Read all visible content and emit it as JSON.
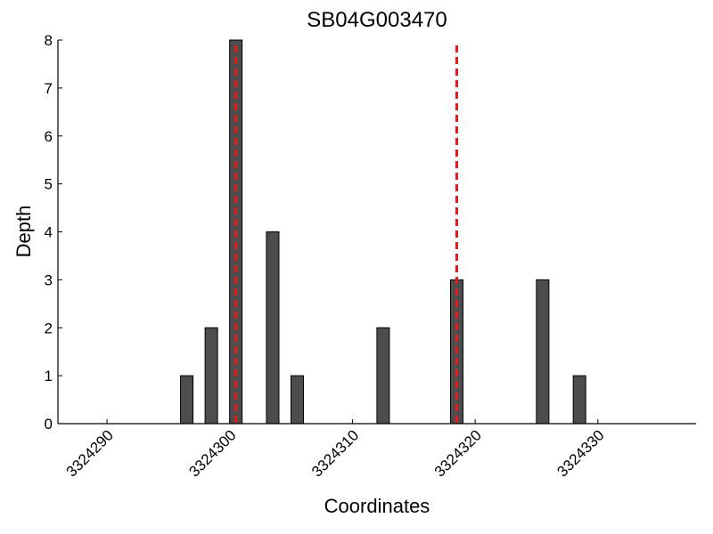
{
  "chart_data": {
    "type": "bar",
    "title": "SB04G003470",
    "xlabel": "Coordinates",
    "ylabel": "Depth",
    "x": [
      3324296.5,
      3324298.5,
      3324300.5,
      3324303.5,
      3324305.5,
      3324312.5,
      3324318.5,
      3324325.5,
      3324328.5
    ],
    "values": [
      1,
      2,
      8,
      4,
      1,
      2,
      3,
      3,
      1
    ],
    "color": "#4d4d4d",
    "xlim": [
      3324286,
      3324338
    ],
    "xticks": [
      3324290,
      3324300,
      3324310,
      3324320,
      3324330
    ],
    "ylim": [
      0,
      8
    ],
    "yticks": [
      0,
      1,
      2,
      3,
      4,
      5,
      6,
      7,
      8
    ],
    "vlines": [
      3324300.5,
      3324318.5
    ],
    "vline_color": "#e41a1c"
  }
}
